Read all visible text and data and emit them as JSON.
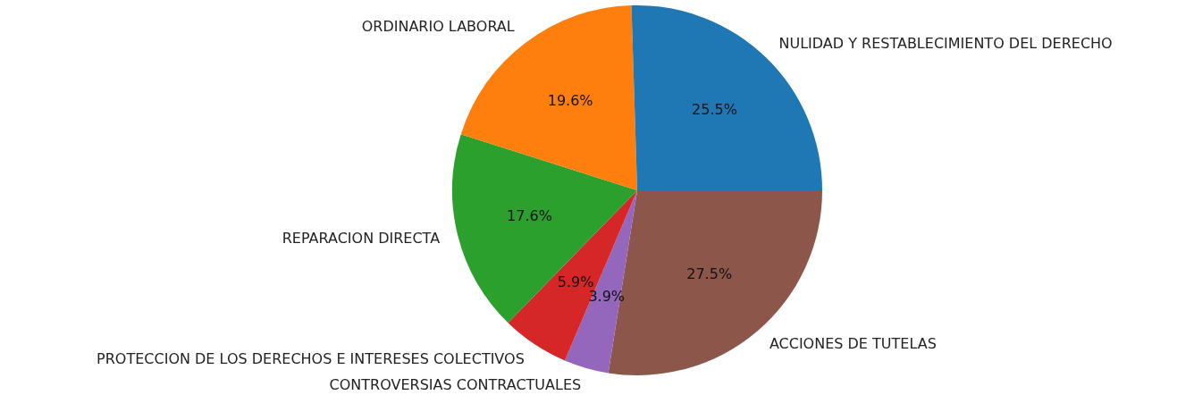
{
  "chart_data": {
    "type": "pie",
    "categories": [
      "NULIDAD Y RESTABLECIMIENTO DEL DERECHO",
      "ORDINARIO LABORAL",
      "REPARACION DIRECTA",
      "PROTECCION DE LOS DERECHOS E INTERESES COLECTIVOS",
      "CONTROVERSIAS CONTRACTUALES",
      "ACCIONES DE TUTELAS"
    ],
    "values": [
      25.5,
      19.6,
      17.6,
      5.9,
      3.9,
      27.5
    ],
    "value_labels": [
      "25.5%",
      "19.6%",
      "17.6%",
      "5.9%",
      "3.9%",
      "27.5%"
    ],
    "colors": [
      "#1f77b4",
      "#ff7f0e",
      "#2ca02c",
      "#d62728",
      "#9467bd",
      "#8c564b"
    ],
    "legend": false
  }
}
